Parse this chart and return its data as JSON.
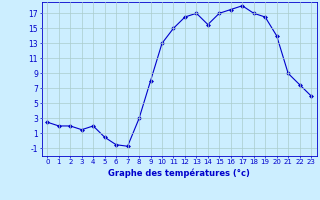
{
  "hours": [
    0,
    1,
    2,
    3,
    4,
    5,
    6,
    7,
    8,
    9,
    10,
    11,
    12,
    13,
    14,
    15,
    16,
    17,
    18,
    19,
    20,
    21,
    22,
    23
  ],
  "temperatures": [
    2.5,
    2.0,
    2.0,
    1.5,
    2.0,
    0.5,
    -0.5,
    -0.7,
    3.0,
    8.0,
    13.0,
    15.0,
    16.5,
    17.0,
    15.5,
    17.0,
    17.5,
    18.0,
    17.0,
    16.5,
    14.0,
    9.0,
    7.5,
    6.0
  ],
  "line_color": "#0000cc",
  "marker": "D",
  "marker_size": 2.0,
  "bg_color": "#cceeff",
  "grid_color": "#aacccc",
  "xlabel": "Graphe des températures (°c)",
  "xlabel_color": "#0000cc",
  "ylabel_ticks": [
    -1,
    1,
    3,
    5,
    7,
    9,
    11,
    13,
    15,
    17
  ],
  "xlim": [
    -0.5,
    23.5
  ],
  "ylim": [
    -2.0,
    18.5
  ],
  "tick_color": "#0000cc",
  "xtick_fontsize": 5.0,
  "ytick_fontsize": 5.5,
  "xlabel_fontsize": 6.0
}
